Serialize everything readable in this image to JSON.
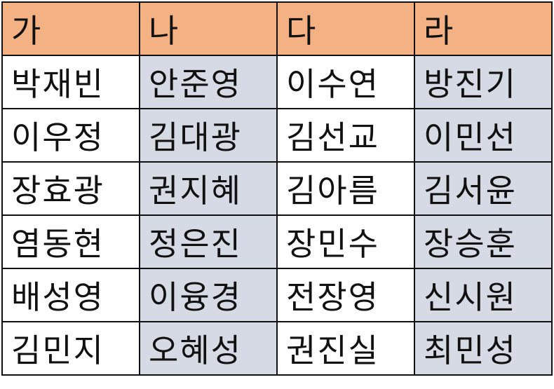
{
  "table": {
    "headers": [
      "가",
      "나",
      "다",
      "라"
    ],
    "rows": [
      [
        "박재빈",
        "안준영",
        "이수연",
        "방진기"
      ],
      [
        "이우정",
        "김대광",
        "김선교",
        "이민선"
      ],
      [
        "장효광",
        "권지혜",
        "김아름",
        "김서윤"
      ],
      [
        "염동현",
        "정은진",
        "장민수",
        "장승훈"
      ],
      [
        "배성영",
        "이융경",
        "전장영",
        "신시원"
      ],
      [
        "김민지",
        "오혜성",
        "권진실",
        "최민성"
      ]
    ]
  },
  "colors": {
    "header_fill": "#f4b183",
    "shaded_column_fill": "#d6dae5",
    "plain_fill": "#ffffff",
    "border": "#111111",
    "text": "#111111"
  }
}
